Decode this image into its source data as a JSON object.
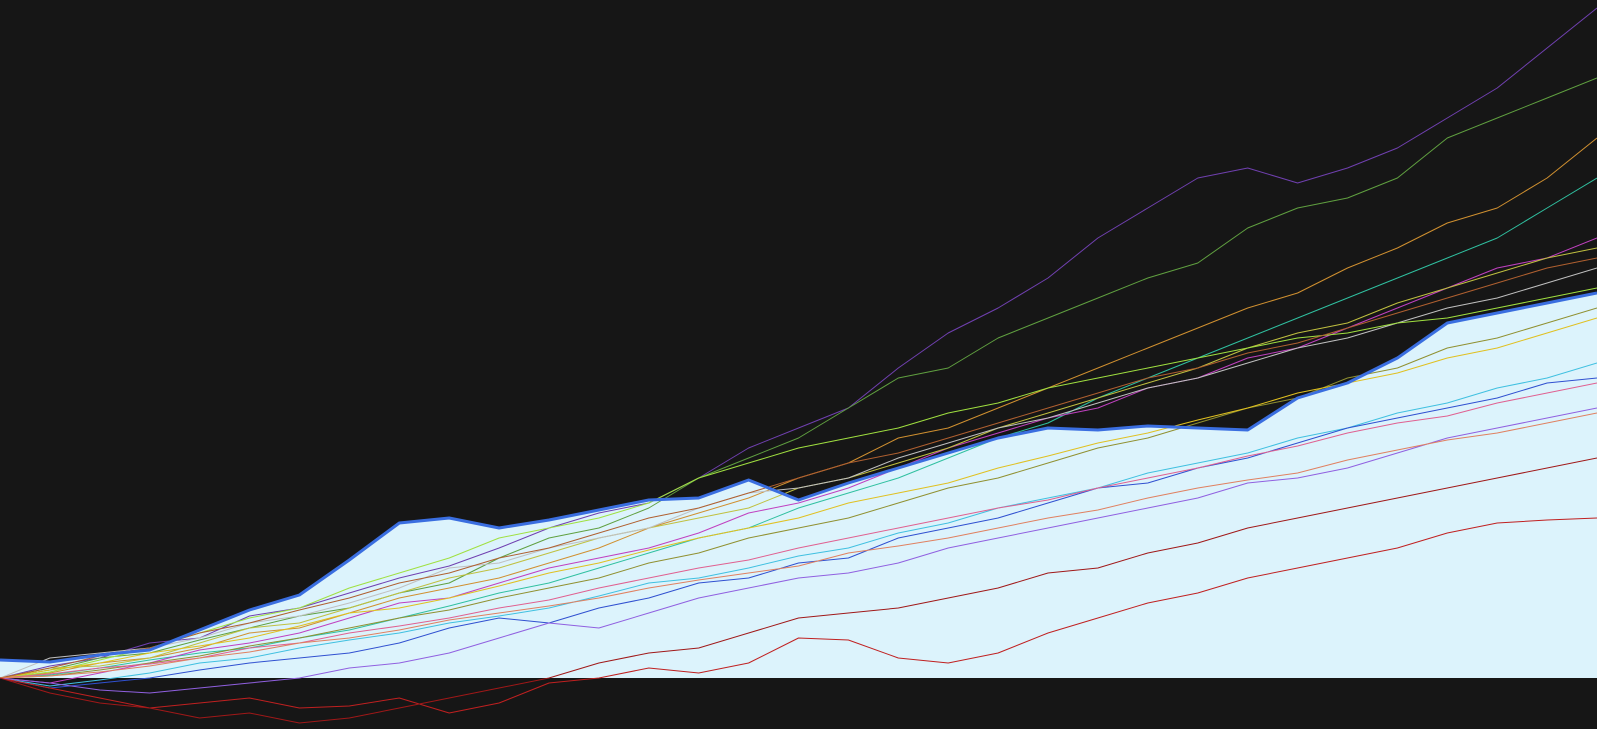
{
  "chart_data": {
    "type": "line",
    "background": "#161616",
    "x": [
      0,
      1,
      2,
      3,
      4,
      5,
      6,
      7,
      8,
      9,
      10,
      11,
      12,
      13,
      14,
      15,
      16,
      17,
      18,
      19,
      20,
      21,
      22,
      23,
      24,
      25,
      26,
      27,
      28,
      29,
      30,
      31,
      32
    ],
    "xlim": [
      0,
      32
    ],
    "ylim": [
      -51,
      678
    ],
    "series": [
      {
        "color": "#7040b0",
        "values": [
          0,
          12,
          20,
          35,
          40,
          62,
          70,
          85,
          100,
          112,
          130,
          150,
          165,
          175,
          200,
          230,
          250,
          270,
          310,
          345,
          370,
          400,
          440,
          470,
          500,
          510,
          495,
          510,
          530,
          560,
          590,
          630,
          670
        ]
      },
      {
        "color": "#60a040",
        "values": [
          0,
          8,
          20,
          25,
          38,
          50,
          62,
          70,
          85,
          95,
          120,
          140,
          150,
          170,
          200,
          220,
          240,
          270,
          300,
          310,
          340,
          360,
          380,
          400,
          415,
          450,
          470,
          480,
          500,
          540,
          560,
          580,
          600
        ]
      },
      {
        "color": "#d09030",
        "values": [
          0,
          5,
          15,
          20,
          30,
          45,
          50,
          65,
          80,
          90,
          100,
          115,
          130,
          150,
          165,
          180,
          200,
          215,
          240,
          250,
          270,
          290,
          310,
          330,
          350,
          370,
          385,
          410,
          430,
          455,
          470,
          500,
          540
        ]
      },
      {
        "color": "#30c0a0",
        "values": [
          0,
          3,
          10,
          18,
          25,
          30,
          40,
          48,
          60,
          72,
          85,
          95,
          110,
          125,
          140,
          150,
          170,
          185,
          200,
          220,
          240,
          255,
          280,
          300,
          320,
          340,
          360,
          380,
          400,
          420,
          440,
          470,
          500
        ]
      },
      {
        "color": "#c040c0",
        "values": [
          0,
          -5,
          5,
          15,
          28,
          35,
          45,
          60,
          75,
          80,
          95,
          110,
          120,
          130,
          145,
          165,
          175,
          190,
          210,
          230,
          245,
          260,
          270,
          290,
          300,
          320,
          330,
          350,
          370,
          390,
          410,
          420,
          440
        ]
      },
      {
        "color": "#c0c040",
        "values": [
          0,
          10,
          12,
          20,
          35,
          50,
          55,
          70,
          85,
          100,
          110,
          125,
          140,
          150,
          160,
          170,
          190,
          200,
          215,
          230,
          250,
          265,
          280,
          295,
          310,
          330,
          345,
          355,
          375,
          390,
          405,
          420,
          430
        ]
      },
      {
        "color": "#c0c0c0",
        "values": [
          0,
          20,
          25,
          30,
          40,
          55,
          62,
          75,
          90,
          110,
          115,
          130,
          140,
          150,
          170,
          185,
          190,
          200,
          220,
          235,
          250,
          260,
          275,
          290,
          300,
          315,
          330,
          340,
          355,
          370,
          380,
          395,
          410
        ]
      },
      {
        "color": "#909030",
        "values": [
          0,
          2,
          8,
          15,
          22,
          32,
          40,
          50,
          60,
          68,
          80,
          90,
          100,
          115,
          125,
          140,
          150,
          160,
          175,
          190,
          200,
          215,
          230,
          240,
          255,
          270,
          280,
          300,
          310,
          330,
          340,
          355,
          370
        ]
      },
      {
        "color": "#40c0e0",
        "values": [
          0,
          -8,
          -2,
          5,
          15,
          20,
          30,
          38,
          45,
          55,
          62,
          70,
          82,
          95,
          100,
          110,
          122,
          130,
          145,
          155,
          170,
          180,
          190,
          205,
          215,
          225,
          240,
          250,
          265,
          275,
          290,
          300,
          315
        ]
      },
      {
        "color": "#a0e040",
        "values": [
          0,
          6,
          18,
          30,
          45,
          60,
          70,
          90,
          105,
          120,
          140,
          150,
          160,
          175,
          200,
          215,
          230,
          240,
          250,
          265,
          275,
          290,
          300,
          310,
          320,
          330,
          340,
          345,
          355,
          360,
          370,
          380,
          390
        ]
      },
      {
        "color": "#3050d0",
        "values": [
          0,
          -10,
          -5,
          0,
          8,
          15,
          20,
          25,
          35,
          50,
          60,
          55,
          70,
          80,
          95,
          100,
          115,
          120,
          140,
          150,
          160,
          175,
          190,
          195,
          210,
          220,
          235,
          250,
          260,
          270,
          280,
          295,
          300
        ]
      },
      {
        "color": "#e06090",
        "values": [
          0,
          4,
          10,
          14,
          20,
          30,
          35,
          45,
          52,
          60,
          70,
          78,
          90,
          100,
          110,
          118,
          130,
          140,
          150,
          160,
          170,
          178,
          190,
          200,
          210,
          222,
          232,
          245,
          255,
          262,
          275,
          285,
          295
        ]
      },
      {
        "color": "#c02020",
        "values": [
          0,
          -10,
          -20,
          -30,
          -25,
          -20,
          -30,
          -28,
          -20,
          -35,
          -25,
          -5,
          0,
          10,
          5,
          15,
          40,
          38,
          20,
          15,
          25,
          45,
          60,
          75,
          85,
          100,
          110,
          120,
          130,
          145,
          155,
          158,
          160
        ]
      },
      {
        "color": "#9060e0",
        "values": [
          0,
          -5,
          -12,
          -15,
          -10,
          -5,
          0,
          10,
          15,
          25,
          40,
          55,
          50,
          65,
          80,
          90,
          100,
          105,
          115,
          130,
          140,
          150,
          160,
          170,
          180,
          195,
          200,
          210,
          225,
          240,
          250,
          260,
          270
        ]
      },
      {
        "color": "#e0c020",
        "values": [
          0,
          8,
          15,
          25,
          32,
          40,
          52,
          65,
          70,
          80,
          92,
          105,
          115,
          128,
          140,
          150,
          160,
          175,
          185,
          195,
          210,
          222,
          235,
          245,
          258,
          270,
          285,
          295,
          305,
          320,
          330,
          345,
          360
        ]
      },
      {
        "color": "#b06030",
        "values": [
          0,
          10,
          22,
          30,
          45,
          55,
          68,
          80,
          95,
          105,
          120,
          130,
          145,
          160,
          170,
          185,
          200,
          215,
          225,
          240,
          255,
          270,
          285,
          300,
          310,
          325,
          335,
          350,
          365,
          380,
          395,
          410,
          420
        ]
      },
      {
        "color": "#e08060",
        "values": [
          0,
          2,
          6,
          12,
          20,
          26,
          35,
          40,
          48,
          58,
          65,
          72,
          80,
          90,
          98,
          105,
          112,
          125,
          132,
          140,
          150,
          160,
          168,
          180,
          190,
          198,
          205,
          218,
          228,
          238,
          245,
          255,
          265
        ]
      },
      {
        "color": "#a01818",
        "values": [
          0,
          -15,
          -25,
          -30,
          -40,
          -35,
          -45,
          -40,
          -30,
          -20,
          -10,
          0,
          15,
          25,
          30,
          45,
          60,
          65,
          70,
          80,
          90,
          105,
          110,
          125,
          135,
          150,
          160,
          170,
          180,
          190,
          200,
          210,
          220
        ]
      },
      {
        "color": "#3a6ee0",
        "fill": "#dcf3fc",
        "width": 3,
        "values": [
          18,
          16,
          23,
          28,
          48,
          68,
          83,
          118,
          155,
          160,
          150,
          158,
          168,
          178,
          180,
          198,
          178,
          195,
          210,
          225,
          240,
          250,
          248,
          252,
          250,
          248,
          280,
          295,
          320,
          355,
          365,
          375,
          385
        ]
      }
    ]
  }
}
